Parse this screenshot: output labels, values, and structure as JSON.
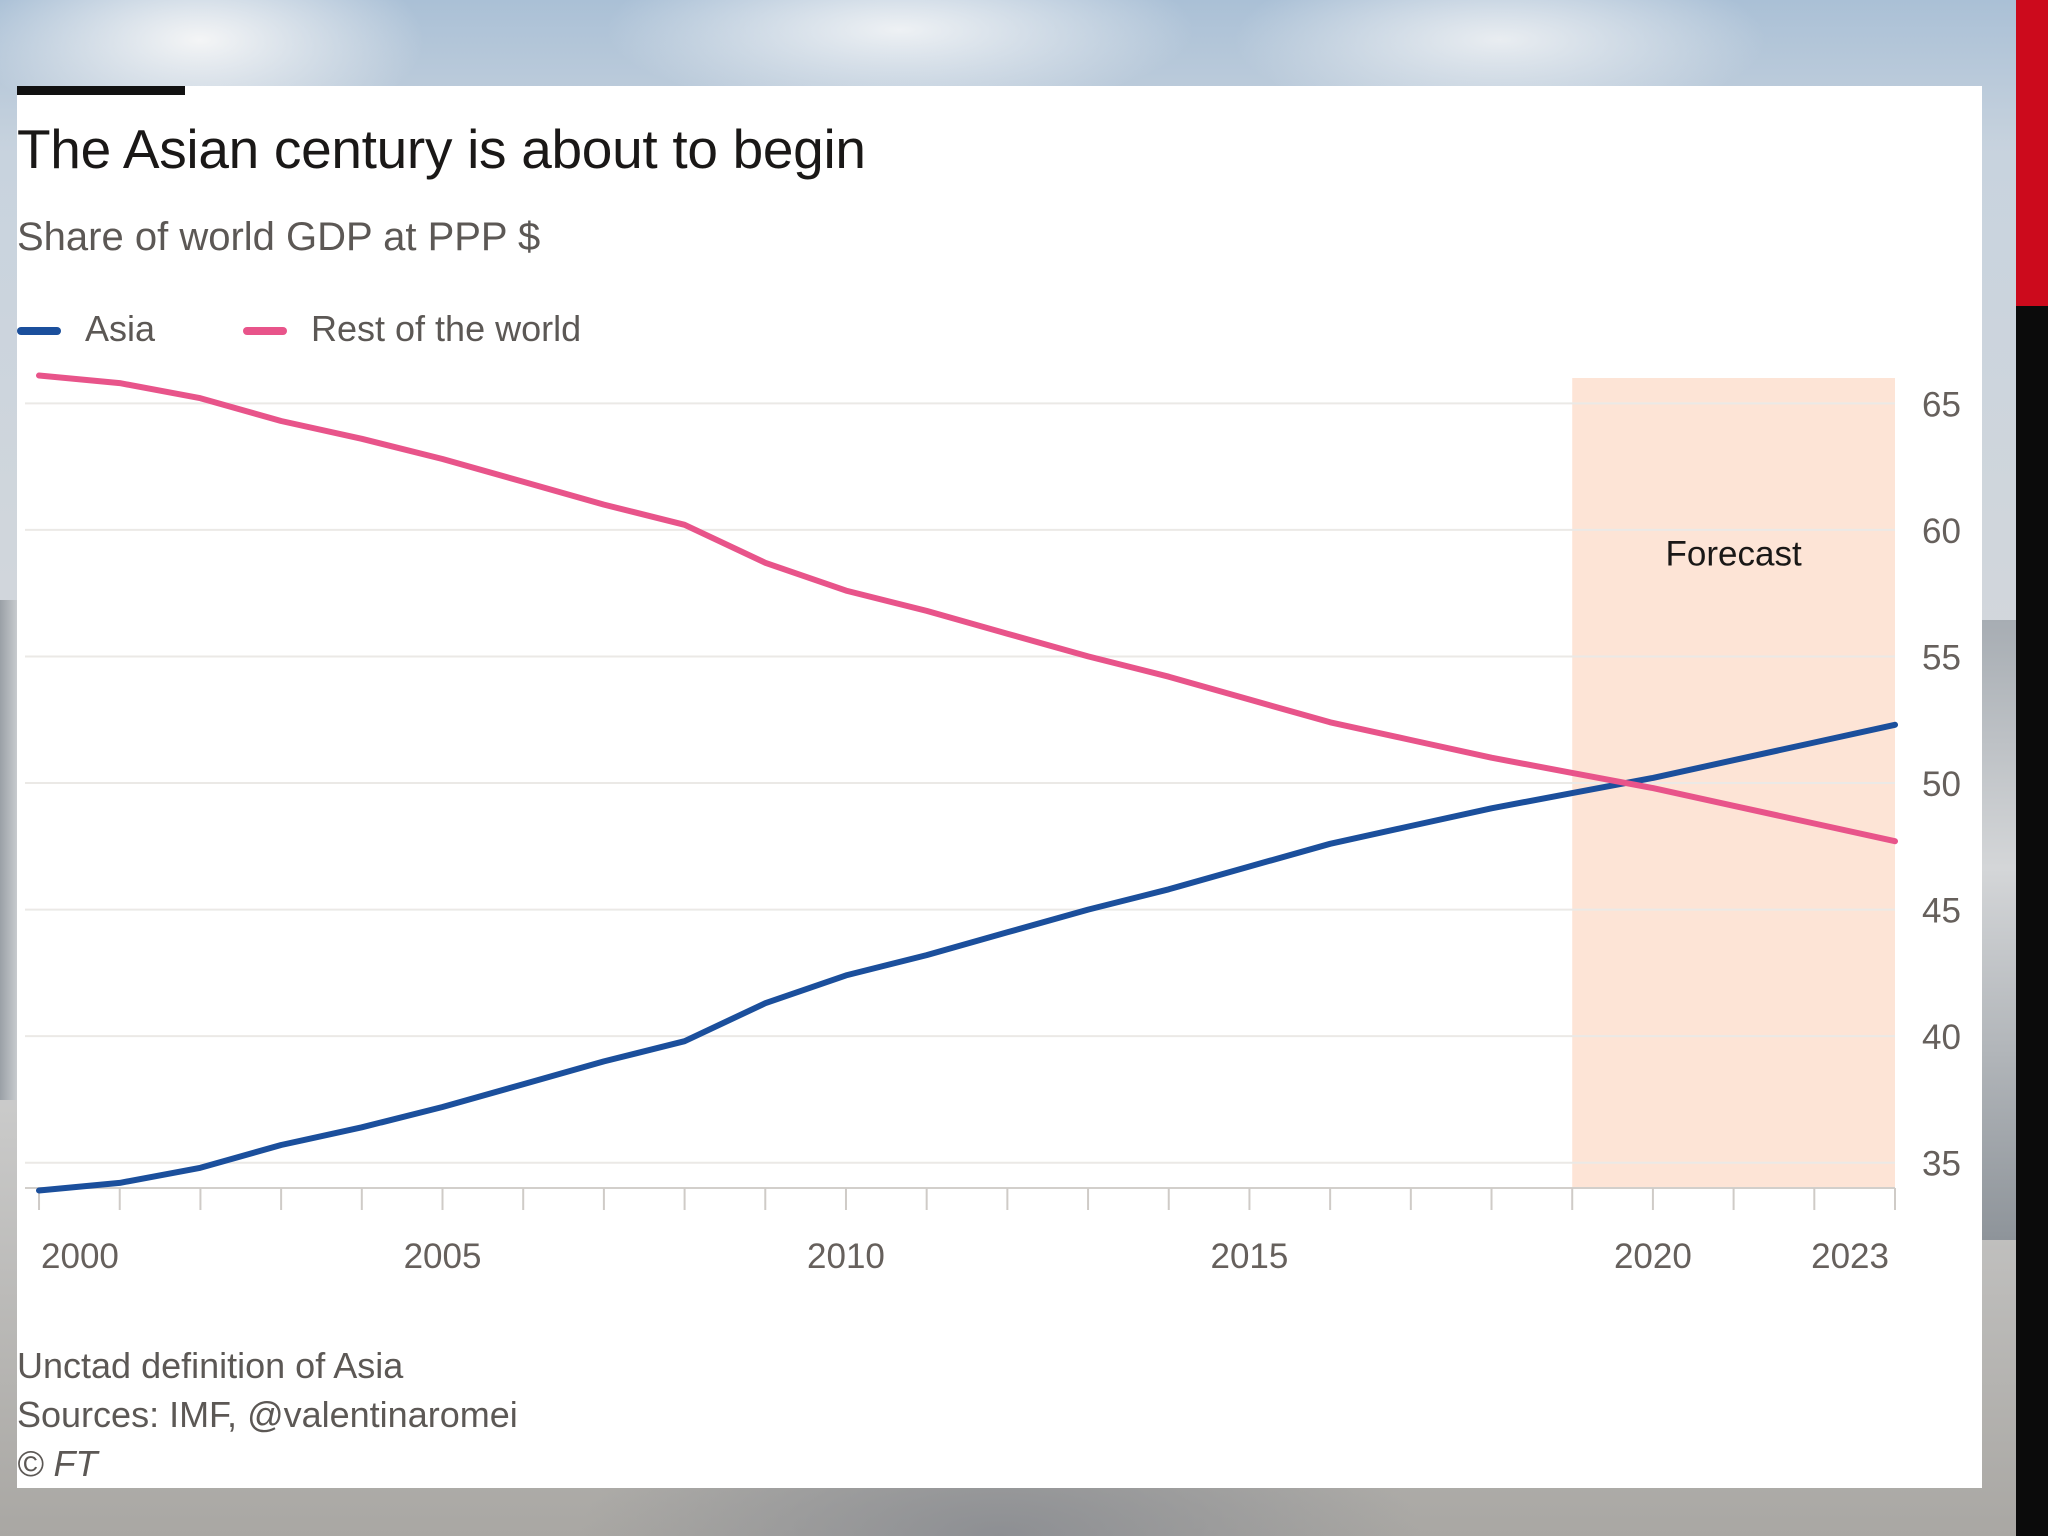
{
  "title": "The Asian century is about to begin",
  "subtitle": "Share of world GDP at PPP $",
  "legend": [
    {
      "label": "Asia",
      "color": "#1b4f9c"
    },
    {
      "label": "Rest of the world",
      "color": "#e8548a"
    }
  ],
  "notes": {
    "definition": "Unctad definition of Asia",
    "sources": "Sources: IMF, @valentinaromei",
    "copyright": "© FT"
  },
  "chart_data": {
    "type": "line",
    "title": "The Asian century is about to begin",
    "ylabel": "Share of world GDP at PPP $",
    "xlim": [
      1999.95,
      2023
    ],
    "ylim": [
      34,
      66
    ],
    "y_ticks": [
      35,
      40,
      45,
      50,
      55,
      60,
      65
    ],
    "y_tick_labels": [
      "35",
      "40",
      "45",
      "50",
      "55",
      "60",
      "65"
    ],
    "x_tick_labels": [
      {
        "value": 2000,
        "label": "2000"
      },
      {
        "value": 2005,
        "label": "2005"
      },
      {
        "value": 2010,
        "label": "2010"
      },
      {
        "value": 2015,
        "label": "2015"
      },
      {
        "value": 2020,
        "label": "2020"
      },
      {
        "value": 2023,
        "label": "2023"
      }
    ],
    "x_minor_ticks": [
      2000,
      2001,
      2002,
      2003,
      2004,
      2005,
      2006,
      2007,
      2008,
      2009,
      2010,
      2011,
      2012,
      2013,
      2014,
      2015,
      2016,
      2017,
      2018,
      2019,
      2020,
      2021,
      2022,
      2023
    ],
    "grid": true,
    "y_axis_position": "right",
    "forecast": {
      "start": 2019,
      "end": 2023,
      "label": "Forecast",
      "color": "#fde4d6"
    },
    "x": [
      2000,
      2001,
      2002,
      2003,
      2004,
      2005,
      2006,
      2007,
      2008,
      2009,
      2010,
      2011,
      2012,
      2013,
      2014,
      2015,
      2016,
      2017,
      2018,
      2019,
      2020,
      2021,
      2022,
      2023
    ],
    "series": [
      {
        "name": "Asia",
        "color": "#1b4f9c",
        "values": [
          33.9,
          34.2,
          34.8,
          35.7,
          36.4,
          37.2,
          38.1,
          39.0,
          39.8,
          41.3,
          42.4,
          43.2,
          44.1,
          45.0,
          45.8,
          46.7,
          47.6,
          48.3,
          49.0,
          49.6,
          50.2,
          50.9,
          51.6,
          52.3
        ]
      },
      {
        "name": "Rest of the world",
        "color": "#e8548a",
        "values": [
          66.1,
          65.8,
          65.2,
          64.3,
          63.6,
          62.8,
          61.9,
          61.0,
          60.2,
          58.7,
          57.6,
          56.8,
          55.9,
          55.0,
          54.2,
          53.3,
          52.4,
          51.7,
          51.0,
          50.4,
          49.8,
          49.1,
          48.4,
          47.7
        ]
      }
    ]
  }
}
